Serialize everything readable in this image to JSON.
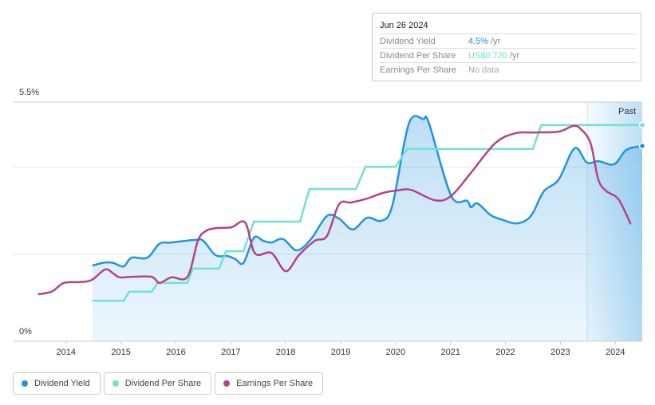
{
  "chart_data": {
    "type": "line",
    "xlim": [
      2013.03,
      2024.49
    ],
    "xticks": [
      2014,
      2015,
      2016,
      2017,
      2018,
      2019,
      2020,
      2021,
      2022,
      2023,
      2024
    ],
    "ylim": [
      0,
      5.5
    ],
    "yticks": [
      {
        "value": 0,
        "label": "0%"
      },
      {
        "value": 5.5,
        "label": "5.5%"
      }
    ],
    "ygrid": [
      2,
      4
    ],
    "past_label": "Past",
    "past_from": 2023.49,
    "series": [
      {
        "name": "Dividend Yield",
        "color": "#2394df",
        "smooth": true,
        "area": true,
        "x": [
          2014.48,
          2014.71,
          2014.86,
          2015.05,
          2015.19,
          2015.48,
          2015.7,
          2015.92,
          2016.35,
          2016.5,
          2016.72,
          2016.94,
          2017.08,
          2017.23,
          2017.42,
          2017.59,
          2017.74,
          2017.95,
          2018.2,
          2018.46,
          2018.75,
          2018.97,
          2019.22,
          2019.48,
          2019.74,
          2019.94,
          2020.24,
          2020.5,
          2020.61,
          2021.01,
          2021.3,
          2021.37,
          2021.49,
          2021.73,
          2021.95,
          2022.17,
          2022.36,
          2022.5,
          2022.7,
          2022.97,
          2023.26,
          2023.48,
          2023.69,
          2023.98,
          2024.2,
          2024.49
        ],
        "values": [
          1.74,
          1.81,
          1.8,
          1.72,
          1.92,
          1.92,
          2.24,
          2.27,
          2.33,
          2.31,
          1.98,
          1.96,
          1.89,
          1.8,
          2.38,
          2.31,
          2.27,
          2.35,
          2.09,
          2.35,
          2.88,
          2.82,
          2.57,
          2.84,
          2.77,
          3.12,
          5.0,
          5.11,
          5.0,
          3.35,
          3.23,
          3.08,
          3.17,
          2.9,
          2.79,
          2.71,
          2.77,
          2.95,
          3.45,
          3.72,
          4.44,
          4.11,
          4.14,
          4.07,
          4.4,
          4.49
        ]
      },
      {
        "name": "Dividend Per Share",
        "color": "#6ee3d2",
        "smooth": false,
        "area": false,
        "x": [
          2014.48,
          2015.05,
          2015.15,
          2015.56,
          2015.67,
          2016.21,
          2016.31,
          2016.79,
          2016.91,
          2017.23,
          2017.42,
          2018.26,
          2018.43,
          2019.28,
          2019.45,
          2020.0,
          2020.21,
          2022.5,
          2022.65,
          2024.49
        ],
        "values": [
          0.93,
          0.93,
          1.14,
          1.14,
          1.34,
          1.34,
          1.67,
          1.67,
          2.07,
          2.07,
          2.75,
          2.75,
          3.5,
          3.5,
          4.01,
          4.01,
          4.42,
          4.42,
          4.97,
          4.97
        ]
      },
      {
        "name": "Earnings Per Share",
        "color": "#b5428b",
        "smooth": true,
        "area": false,
        "x": [
          2013.49,
          2013.74,
          2013.96,
          2014.25,
          2014.47,
          2014.71,
          2014.86,
          2014.97,
          2015.19,
          2015.56,
          2015.7,
          2015.92,
          2016.21,
          2016.4,
          2016.54,
          2016.72,
          2017.01,
          2017.26,
          2017.44,
          2017.74,
          2018.0,
          2018.24,
          2018.53,
          2018.75,
          2018.97,
          2019.19,
          2019.48,
          2019.77,
          2019.99,
          2020.28,
          2020.72,
          2021.01,
          2021.37,
          2021.81,
          2022.17,
          2022.53,
          2022.97,
          2023.23,
          2023.37,
          2023.55,
          2023.69,
          2023.84,
          2024.06,
          2024.28
        ],
        "values": [
          1.08,
          1.14,
          1.34,
          1.36,
          1.41,
          1.65,
          1.56,
          1.47,
          1.48,
          1.48,
          1.34,
          1.47,
          1.48,
          2.31,
          2.53,
          2.6,
          2.62,
          2.73,
          2.02,
          2.03,
          1.61,
          1.98,
          2.31,
          2.42,
          3.15,
          3.19,
          3.28,
          3.41,
          3.46,
          3.48,
          3.24,
          3.34,
          3.87,
          4.55,
          4.78,
          4.8,
          4.82,
          4.95,
          4.88,
          4.55,
          3.72,
          3.45,
          3.26,
          2.69
        ]
      }
    ],
    "tooltip": {
      "date": "Jun 26 2024",
      "rows": [
        {
          "label": "Dividend Yield",
          "value": "4.5%",
          "unit": "/yr"
        },
        {
          "label": "Dividend Per Share",
          "value": "US$0.720",
          "unit": "/yr"
        },
        {
          "label": "Earnings Per Share",
          "value": "No data"
        }
      ]
    }
  }
}
